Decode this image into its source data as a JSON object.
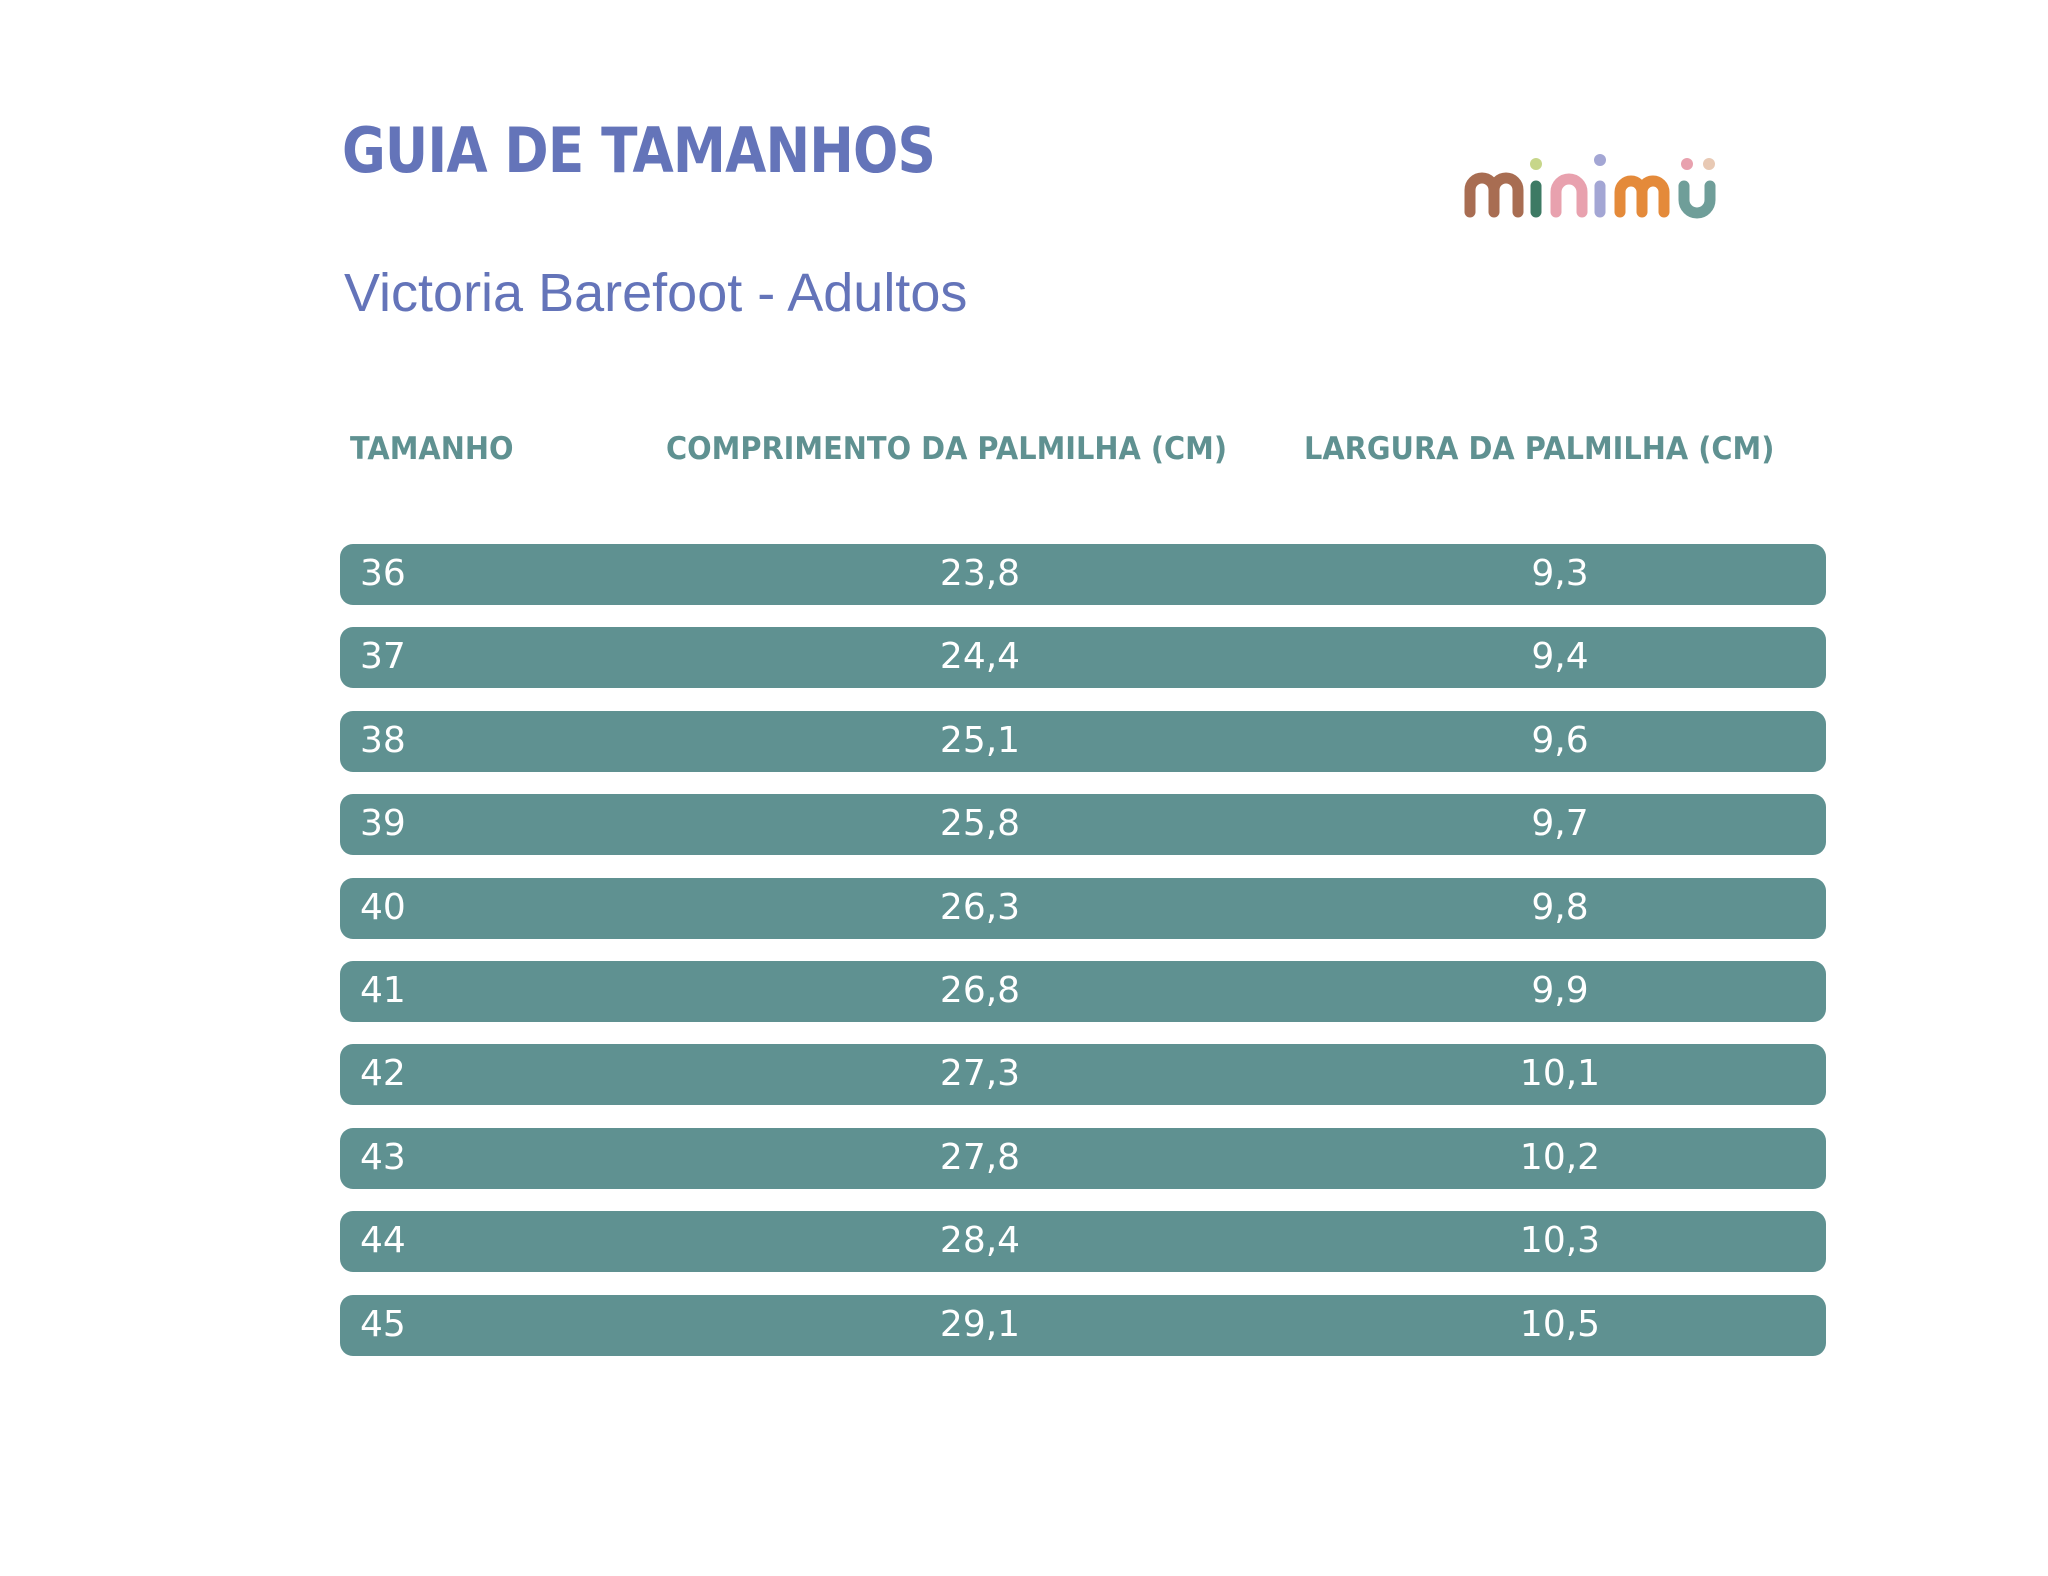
{
  "title": "GUIA DE TAMANHOS",
  "subtitle": "Victoria Barefoot - Adultos",
  "logo": {
    "text": "minimü",
    "letter_colors": [
      "#a86d52",
      "#3d7a64",
      "#e8a1ae",
      "#a3a6d4",
      "#e48a3a",
      "#6f9e99"
    ],
    "dot_colors": [
      "#c7d68a",
      "#a3a6d4",
      "#e8a1ae",
      "#e8c9b4"
    ]
  },
  "colors": {
    "title": "#6474b9",
    "header": "#5f9191",
    "row_bg": "#5f9191",
    "row_text": "#ffffff"
  },
  "table": {
    "headers": [
      "TAMANHO",
      "COMPRIMENTO DA PALMILHA (CM)",
      "LARGURA DA PALMILHA (CM)"
    ],
    "rows": [
      [
        "36",
        "23,8",
        "9,3"
      ],
      [
        "37",
        "24,4",
        "9,4"
      ],
      [
        "38",
        "25,1",
        "9,6"
      ],
      [
        "39",
        "25,8",
        "9,7"
      ],
      [
        "40",
        "26,3",
        "9,8"
      ],
      [
        "41",
        "26,8",
        "9,9"
      ],
      [
        "42",
        "27,3",
        "10,1"
      ],
      [
        "43",
        "27,8",
        "10,2"
      ],
      [
        "44",
        "28,4",
        "10,3"
      ],
      [
        "45",
        "29,1",
        "10,5"
      ]
    ]
  }
}
